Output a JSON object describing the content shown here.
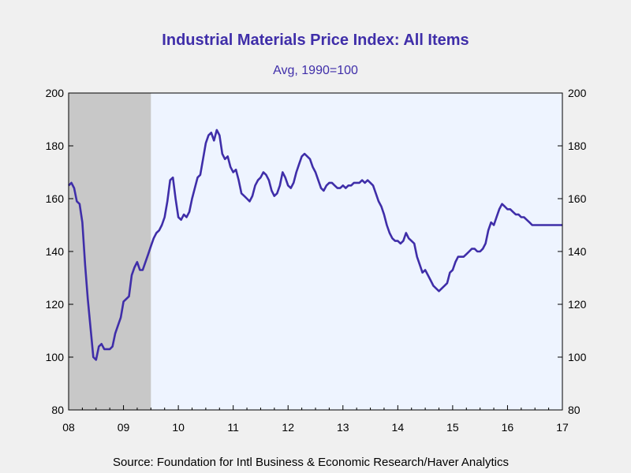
{
  "chart_data": {
    "type": "line",
    "title": "Industrial Materials Price Index: All Items",
    "subtitle": "Avg, 1990=100",
    "source": "Source:  Foundation for Intl Business & Economic Research/Haver Analytics",
    "ylim": [
      80,
      200
    ],
    "yticks": [
      80,
      100,
      120,
      140,
      160,
      180,
      200
    ],
    "ytick_labels": [
      "80",
      "100",
      "120",
      "140",
      "160",
      "180",
      "200"
    ],
    "right_axis": true,
    "xlim": [
      2008.0,
      2017.0
    ],
    "xtick_positions": [
      2008,
      2009,
      2010,
      2011,
      2012,
      2013,
      2014,
      2015,
      2016,
      2017
    ],
    "xtick_labels": [
      "08",
      "09",
      "10",
      "11",
      "12",
      "13",
      "14",
      "15",
      "16",
      "17"
    ],
    "recession_shading": {
      "x_start": 2008.0,
      "x_end": 2009.5,
      "color": "#c8c8c8"
    },
    "plot_background": "#eef4ff",
    "line_color": "#3f2ea9",
    "x": [
      2008.0,
      2008.05,
      2008.1,
      2008.15,
      2008.2,
      2008.25,
      2008.3,
      2008.35,
      2008.4,
      2008.45,
      2008.5,
      2008.55,
      2008.6,
      2008.65,
      2008.7,
      2008.75,
      2008.8,
      2008.85,
      2008.9,
      2008.95,
      2009.0,
      2009.05,
      2009.1,
      2009.15,
      2009.2,
      2009.25,
      2009.3,
      2009.35,
      2009.4,
      2009.45,
      2009.5,
      2009.55,
      2009.6,
      2009.65,
      2009.7,
      2009.75,
      2009.8,
      2009.85,
      2009.9,
      2009.95,
      2010.0,
      2010.05,
      2010.1,
      2010.15,
      2010.2,
      2010.25,
      2010.3,
      2010.35,
      2010.4,
      2010.45,
      2010.5,
      2010.55,
      2010.6,
      2010.65,
      2010.7,
      2010.75,
      2010.8,
      2010.85,
      2010.9,
      2010.95,
      2011.0,
      2011.05,
      2011.1,
      2011.15,
      2011.2,
      2011.25,
      2011.3,
      2011.35,
      2011.4,
      2011.45,
      2011.5,
      2011.55,
      2011.6,
      2011.65,
      2011.7,
      2011.75,
      2011.8,
      2011.85,
      2011.9,
      2011.95,
      2012.0,
      2012.05,
      2012.1,
      2012.15,
      2012.2,
      2012.25,
      2012.3,
      2012.35,
      2012.4,
      2012.45,
      2012.5,
      2012.55,
      2012.6,
      2012.65,
      2012.7,
      2012.75,
      2012.8,
      2012.85,
      2012.9,
      2012.95,
      2013.0,
      2013.05,
      2013.1,
      2013.15,
      2013.2,
      2013.25,
      2013.3,
      2013.35,
      2013.4,
      2013.45,
      2013.5,
      2013.55,
      2013.6,
      2013.65,
      2013.7,
      2013.75,
      2013.8,
      2013.85,
      2013.9,
      2013.95,
      2014.0,
      2014.05,
      2014.1,
      2014.15,
      2014.2,
      2014.25,
      2014.3,
      2014.35,
      2014.4,
      2014.45,
      2014.5,
      2014.55,
      2014.6,
      2014.65,
      2014.7,
      2014.75,
      2014.8,
      2014.85,
      2014.9,
      2014.95,
      2015.0,
      2015.05,
      2015.1,
      2015.15,
      2015.2,
      2015.25,
      2015.3,
      2015.35,
      2015.4,
      2015.45,
      2015.5,
      2015.55,
      2015.6,
      2015.65,
      2015.7,
      2015.75,
      2015.8,
      2015.85,
      2015.9,
      2015.95,
      2016.0,
      2016.05,
      2016.1,
      2016.15,
      2016.2,
      2016.25,
      2016.3,
      2016.35,
      2016.4,
      2016.45,
      2016.5,
      2016.55,
      2016.6,
      2016.65,
      2016.7,
      2016.75,
      2016.8,
      2016.85,
      2016.9,
      2016.95,
      2017.0
    ],
    "values": [
      165,
      166,
      164,
      159,
      158,
      151,
      135,
      122,
      111,
      100,
      99,
      104,
      105,
      103,
      103,
      103,
      104,
      109,
      112,
      115,
      121,
      122,
      123,
      131,
      134,
      136,
      133,
      133,
      136,
      139,
      142,
      145,
      147,
      148,
      150,
      153,
      159,
      167,
      168,
      160,
      153,
      152,
      154,
      153,
      155,
      160,
      164,
      168,
      169,
      175,
      181,
      184,
      185,
      182,
      186,
      184,
      177,
      175,
      176,
      172,
      170,
      171,
      167,
      162,
      161,
      160,
      159,
      161,
      165,
      167,
      168,
      170,
      169,
      167,
      163,
      161,
      162,
      165,
      170,
      168,
      165,
      164,
      166,
      170,
      173,
      176,
      177,
      176,
      175,
      172,
      170,
      167,
      164,
      163,
      165,
      166,
      166,
      165,
      164,
      164,
      165,
      164,
      165,
      165,
      166,
      166,
      166,
      167,
      166,
      167,
      166,
      165,
      162,
      159,
      157,
      154,
      150,
      147,
      145,
      144,
      144,
      143,
      144,
      147,
      145,
      144,
      143,
      138,
      135,
      132,
      133,
      131,
      129,
      127,
      126,
      125,
      126,
      127,
      128,
      132,
      133,
      136,
      138,
      138,
      138,
      139,
      140,
      141,
      141,
      140,
      140,
      141,
      143,
      148,
      151,
      150,
      153,
      156,
      158,
      157,
      156,
      156,
      155,
      154,
      154,
      153,
      153,
      152,
      151,
      150,
      150,
      150,
      150,
      150,
      150,
      150,
      150,
      150,
      150,
      150,
      150
    ]
  }
}
